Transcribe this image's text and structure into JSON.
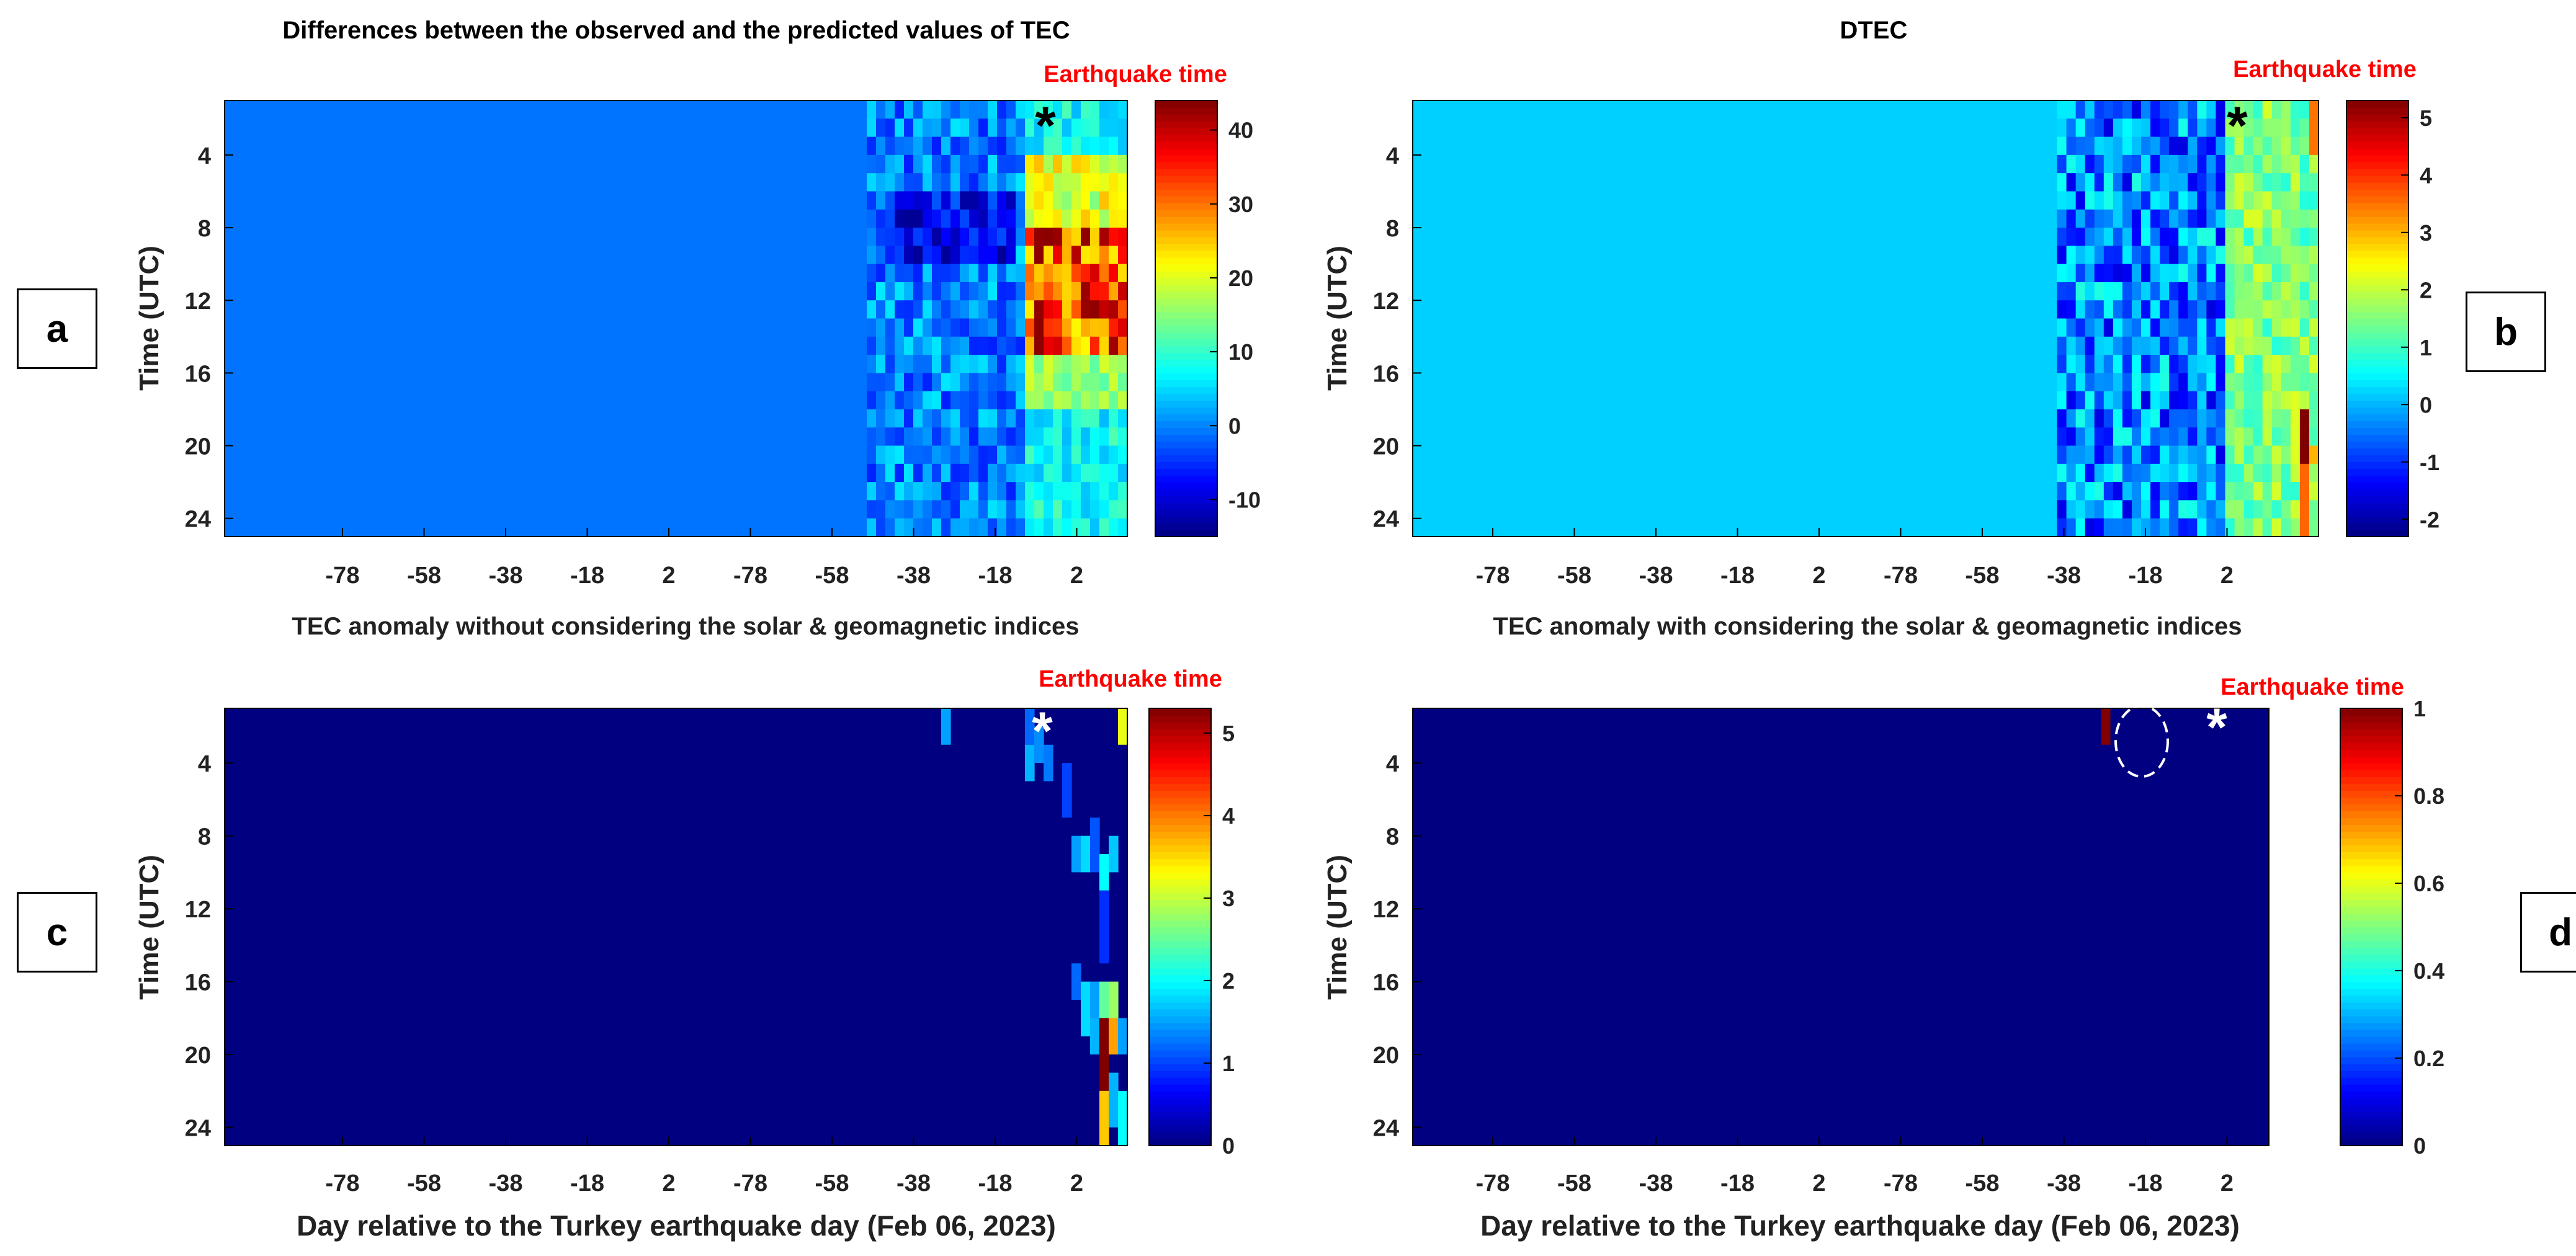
{
  "figure": {
    "xlabel": "Day relative to the Turkey earthquake day (Feb 06, 2023)",
    "ylabel": "Time (UTC)",
    "annotation": "Earthquake time",
    "annotation_color": "#ff0000"
  },
  "chart_data": [
    {
      "id": "a",
      "panel_label": "a",
      "type": "heatmap",
      "title": "Differences between the observed and the predicted values of TEC",
      "xlabel": "",
      "ylabel": "Time (UTC)",
      "xticks": [
        "-78",
        "-58",
        "-38",
        "-18",
        "2",
        "-78",
        "-58",
        "-38",
        "-18",
        "2"
      ],
      "yticks": [
        "4",
        "8",
        "12",
        "16",
        "20",
        "24"
      ],
      "ylim": [
        1,
        25
      ],
      "color_range": [
        -15,
        44
      ],
      "colorbar_ticks": [
        "40",
        "30",
        "20",
        "10",
        "0",
        "-10"
      ],
      "colorbar_values": [
        40,
        30,
        20,
        10,
        0,
        -10
      ],
      "background_value": -1,
      "columns": 97,
      "active_from_column": 69,
      "earthquake_marker": "*",
      "marker_color": "#000000"
    },
    {
      "id": "b",
      "panel_label": "b",
      "type": "heatmap",
      "title": "DTEC",
      "xlabel": "",
      "ylabel": "Time (UTC)",
      "xticks": [
        "-78",
        "-58",
        "-38",
        "-18",
        "2",
        "-78",
        "-58",
        "-38",
        "-18",
        "2"
      ],
      "yticks": [
        "4",
        "8",
        "12",
        "16",
        "20",
        "24"
      ],
      "ylim": [
        1,
        25
      ],
      "color_range": [
        -2.3,
        5.3
      ],
      "colorbar_ticks": [
        "5",
        "4",
        "3",
        "2",
        "1",
        "0",
        "-1",
        "-2"
      ],
      "colorbar_values": [
        5,
        4,
        3,
        2,
        1,
        0,
        -1,
        -2
      ],
      "background_value": 0.2,
      "columns": 97,
      "active_from_column": 69,
      "earthquake_marker": "*",
      "marker_color": "#000000"
    },
    {
      "id": "c",
      "panel_label": "c",
      "type": "heatmap",
      "title": "TEC anomaly without considering the solar & geomagnetic indices",
      "xlabel": "Day relative to the Turkey earthquake day (Feb 06, 2023)",
      "ylabel": "Time (UTC)",
      "xticks": [
        "-78",
        "-58",
        "-38",
        "-18",
        "2",
        "-78",
        "-58",
        "-38",
        "-18",
        "2"
      ],
      "yticks": [
        "4",
        "8",
        "12",
        "16",
        "20",
        "24"
      ],
      "ylim": [
        1,
        25
      ],
      "color_range": [
        0,
        5.3
      ],
      "colorbar_ticks": [
        "5",
        "4",
        "3",
        "2",
        "1",
        "0"
      ],
      "colorbar_values": [
        5,
        4,
        3,
        2,
        1,
        0
      ],
      "background_value": 0,
      "columns": 97,
      "earthquake_marker": "*",
      "marker_color": "#ffffff",
      "cells": [
        {
          "col": 77,
          "row": 1,
          "h": 2,
          "v": 1.5
        },
        {
          "col": 86,
          "row": 1,
          "h": 2,
          "v": 1.2
        },
        {
          "col": 86,
          "row": 3,
          "h": 2,
          "v": 1.6
        },
        {
          "col": 87,
          "row": 2,
          "h": 2,
          "v": 1.4
        },
        {
          "col": 88,
          "row": 3,
          "h": 2,
          "v": 1.3
        },
        {
          "col": 90,
          "row": 4,
          "h": 3,
          "v": 1.0
        },
        {
          "col": 91,
          "row": 8,
          "h": 2,
          "v": 1.5
        },
        {
          "col": 92,
          "row": 8,
          "h": 2,
          "v": 1.8
        },
        {
          "col": 93,
          "row": 7,
          "h": 3,
          "v": 1.1
        },
        {
          "col": 94,
          "row": 9,
          "h": 2,
          "v": 2.0
        },
        {
          "col": 95,
          "row": 8,
          "h": 2,
          "v": 1.7
        },
        {
          "col": 94,
          "row": 11,
          "h": 4,
          "v": 0.9
        },
        {
          "col": 91,
          "row": 15,
          "h": 2,
          "v": 1.2
        },
        {
          "col": 92,
          "row": 16,
          "h": 3,
          "v": 1.8
        },
        {
          "col": 93,
          "row": 16,
          "h": 2,
          "v": 1.5
        },
        {
          "col": 94,
          "row": 16,
          "h": 2,
          "v": 2.5
        },
        {
          "col": 95,
          "row": 16,
          "h": 3,
          "v": 2.8
        },
        {
          "col": 93,
          "row": 18,
          "h": 2,
          "v": 1.6
        },
        {
          "col": 94,
          "row": 18,
          "h": 7,
          "v": 5.3
        },
        {
          "col": 95,
          "row": 18,
          "h": 2,
          "v": 3.8
        },
        {
          "col": 94,
          "row": 22,
          "h": 3,
          "v": 3.6
        },
        {
          "col": 95,
          "row": 21,
          "h": 3,
          "v": 1.6
        },
        {
          "col": 96,
          "row": 1,
          "h": 2,
          "v": 3.2
        },
        {
          "col": 96,
          "row": 18,
          "h": 2,
          "v": 1.5
        },
        {
          "col": 96,
          "row": 22,
          "h": 3,
          "v": 2.0
        }
      ]
    },
    {
      "id": "d",
      "panel_label": "d",
      "type": "heatmap",
      "title": "TEC anomaly with considering the solar & geomagnetic indices",
      "xlabel": "Day relative to the Turkey earthquake day (Feb 06, 2023)",
      "ylabel": "Time (UTC)",
      "xticks": [
        "-78",
        "-58",
        "-38",
        "-18",
        "2",
        "-78",
        "-58",
        "-38",
        "-18",
        "2"
      ],
      "yticks": [
        "4",
        "8",
        "12",
        "16",
        "20",
        "24"
      ],
      "ylim": [
        1,
        25
      ],
      "color_range": [
        0,
        1
      ],
      "colorbar_ticks": [
        "1",
        "0.8",
        "0.6",
        "0.4",
        "0.2",
        "0"
      ],
      "colorbar_values": [
        1,
        0.8,
        0.6,
        0.4,
        0.2,
        0
      ],
      "background_value": 0,
      "columns": 97,
      "earthquake_marker": "*",
      "marker_color": "#ffffff",
      "cells": [
        {
          "col": 78,
          "row": 1,
          "h": 2,
          "v": 1
        }
      ],
      "highlight": "dashed ellipse around anomaly"
    }
  ]
}
